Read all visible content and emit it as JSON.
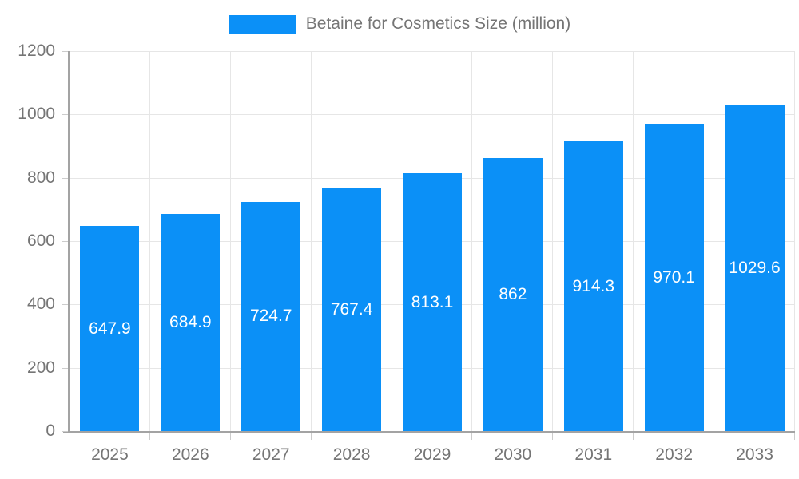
{
  "chart_data": {
    "type": "bar",
    "title": "",
    "legend": "Betaine for Cosmetics Size (million)",
    "legend_position": "top-center",
    "categories": [
      "2025",
      "2026",
      "2027",
      "2028",
      "2029",
      "2030",
      "2031",
      "2032",
      "2033"
    ],
    "values": [
      647.9,
      684.9,
      724.7,
      767.4,
      813.1,
      862,
      914.3,
      970.1,
      1029.6
    ],
    "xlabel": "",
    "ylabel": "",
    "ylim": [
      0,
      1200
    ],
    "yticks": [
      0,
      200,
      400,
      600,
      800,
      1000,
      1200
    ],
    "grid": true,
    "bar_label_position": "center-inside",
    "colors": {
      "bar": "#0b90f7",
      "axis_text": "#757575",
      "bar_label_text": "#ffffff",
      "gridline": "#e6e6e6",
      "axis_line": "#a3a3a3",
      "tick": "#cccccc",
      "background": "#ffffff"
    }
  }
}
